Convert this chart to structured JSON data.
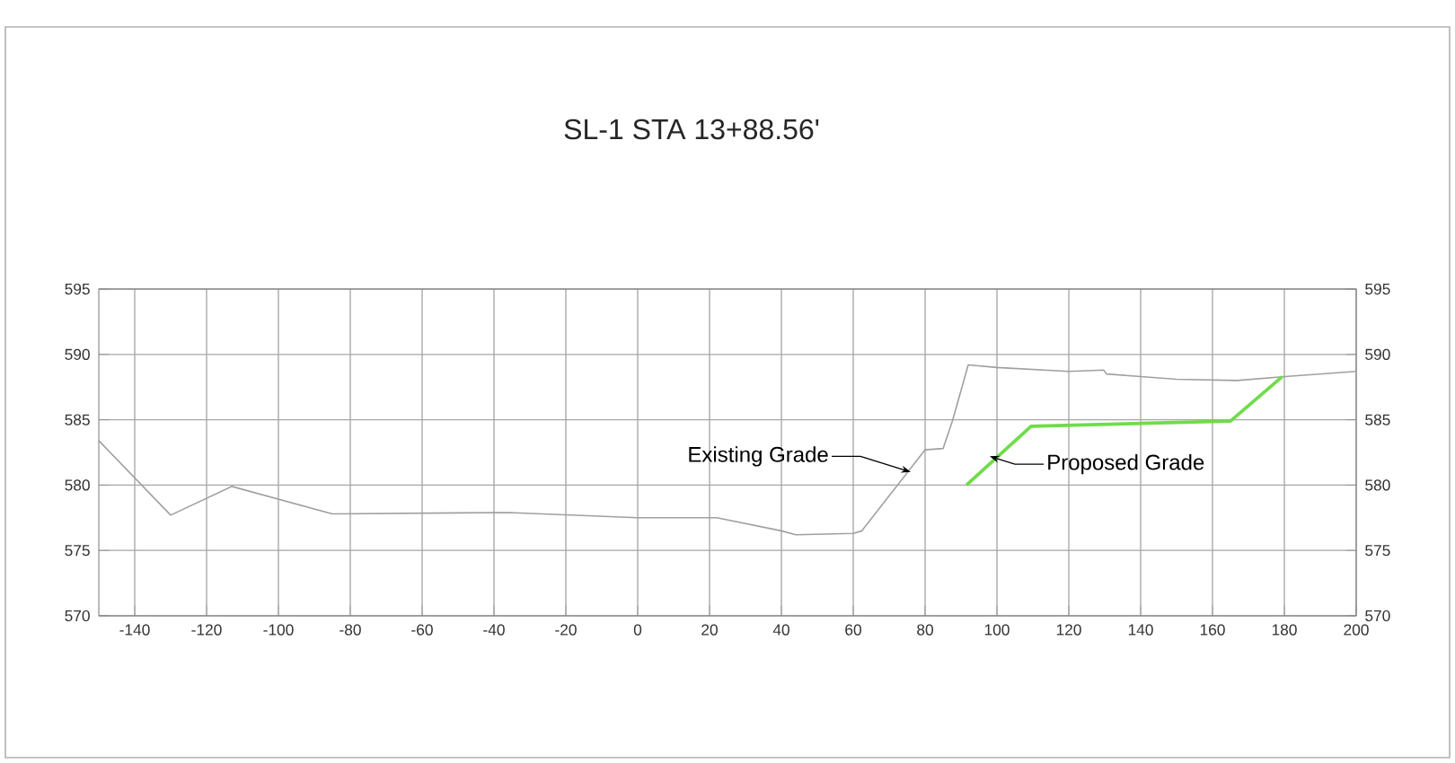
{
  "chart_data": {
    "type": "line",
    "title": "SL-1 STA 13+88.56'",
    "x": [
      -150,
      -130,
      -113,
      -85,
      -36,
      0,
      22,
      40,
      44,
      60,
      62.4,
      80,
      85,
      87.6,
      92,
      100,
      120,
      129.7,
      130.5,
      140,
      150,
      166.8,
      180.2,
      200
    ],
    "series": [
      {
        "color": "#a0a0a0",
        "values": [
          583.4,
          577.7,
          579.9,
          577.8,
          577.9,
          577.5,
          577.5,
          576.5,
          576.2,
          576.3,
          576.5,
          582.7,
          582.8,
          584.9,
          589.2,
          589,
          588.7,
          588.8,
          588.5,
          588.3,
          588.1,
          588,
          588.3,
          588.7
        ]
      },
      {
        "color": "#6fdc4a",
        "x": [
          91.5,
          109.5,
          165,
          179.4
        ],
        "values": [
          580,
          584.5,
          584.9,
          588.3
        ]
      }
    ],
    "annotations": [
      {
        "text": "Existing Grade",
        "x": 76,
        "y": 581
      },
      {
        "text": "Proposed Grade",
        "x": 98,
        "y": 582.2
      }
    ],
    "xlim": [
      -150,
      200
    ],
    "xticks": [
      -140,
      -120,
      -100,
      -80,
      -60,
      -40,
      -20,
      0,
      20,
      40,
      60,
      80,
      100,
      120,
      140,
      160,
      180,
      200
    ],
    "ylim": [
      570,
      595
    ],
    "yticks": [
      570,
      575,
      580,
      585,
      590,
      595
    ],
    "y2lim": [
      570,
      595
    ],
    "y2ticks": [
      570,
      575,
      580,
      585,
      590,
      595
    ],
    "grid": true,
    "marker": "none",
    "line_style": "solid"
  }
}
